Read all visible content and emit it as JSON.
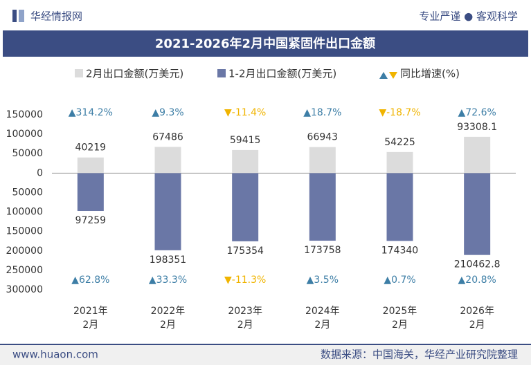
{
  "header": {
    "brand": "华经情报网",
    "slogan": "专业严谨 ● 客观科学"
  },
  "footer": {
    "site": "www.huaon.com",
    "source": "数据来源：中国海关，华经产业研究院整理"
  },
  "chart_data": {
    "type": "bar",
    "title": "2021-2026年2月中国紧固件出口金额",
    "categories": [
      "2021年2月",
      "2022年2月",
      "2023年2月",
      "2024年2月",
      "2025年2月",
      "2026年2月"
    ],
    "series": [
      {
        "name": "2月出口金额(万美元)",
        "color": "#dcdcdc",
        "values": [
          40219,
          67486,
          59415,
          66943,
          54225,
          93308.1
        ]
      },
      {
        "name": "1-2月出口金额(万美元)",
        "color": "#6a77a6",
        "values": [
          -97259,
          -198351,
          -175354,
          -173758,
          -174340,
          -210462.8
        ],
        "value_labels": [
          "97259",
          "198351",
          "175354",
          "173758",
          "174340",
          "210462.8"
        ]
      }
    ],
    "growth_legend": "同比增速(%)",
    "growth": [
      {
        "values": [
          314.2,
          9.3,
          -11.4,
          18.7,
          -18.7,
          72.6
        ],
        "value_labels": [
          "▲314.2%",
          "▲9.3%",
          "▼-11.4%",
          "▲18.7%",
          "▼-18.7%",
          "▲72.6%"
        ]
      },
      {
        "values": [
          62.8,
          33.3,
          -11.3,
          3.5,
          0.7,
          20.8
        ],
        "value_labels": [
          "▲62.8%",
          "▲33.3%",
          "▼-11.3%",
          "▲3.5%",
          "▲0.7%",
          "▲20.8%"
        ]
      }
    ],
    "up_color": "#3d7ea6",
    "down_color": "#f0b400",
    "ylim": [
      -300000,
      150000
    ],
    "yticks": [
      150000,
      100000,
      50000,
      0,
      {
        "value": -50000,
        "label": "50000"
      },
      {
        "value": -100000,
        "label": "100000"
      },
      {
        "value": -150000,
        "label": "150000"
      },
      {
        "value": -200000,
        "label": "200000"
      },
      {
        "value": -250000,
        "label": "250000"
      },
      {
        "value": -300000,
        "label": "300000"
      }
    ]
  }
}
